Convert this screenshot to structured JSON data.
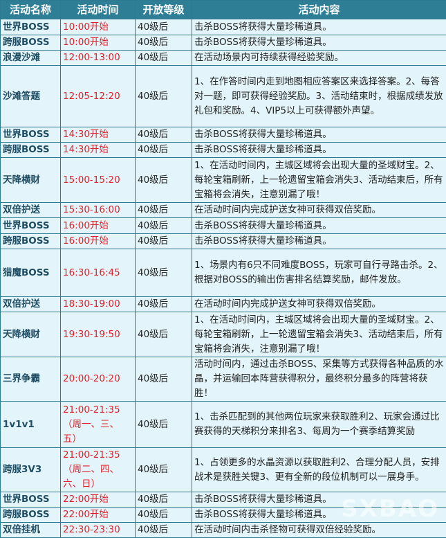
{
  "headers": [
    "活动名称",
    "活动时间",
    "开放等级",
    "活动内容"
  ],
  "rows": [
    {
      "name": "世界BOSS",
      "time": "10:00开始",
      "level": "40级后",
      "content": "击杀BOSS将获得大量珍稀道具。"
    },
    {
      "name": "跨服BOSS",
      "time": "10:00开始",
      "level": "40级后",
      "content": "击杀BOSS将获得大量珍稀道具。"
    },
    {
      "name": "浪漫沙滩",
      "time": "12:00-13:00",
      "level": "40级后",
      "content": "在活动场景内可持续获得经验奖励。"
    },
    {
      "name": "沙滩答题",
      "time": "12:05-12:20",
      "level": "40级后",
      "content": "1、在作答时间内走到地图相应答案区来选择答案。2、每答对一题，即可获得经验奖励。3、活动结束时，根据成绩发放礼包和奖励。4、VIP5以上可获得额外声望。"
    },
    {
      "name": "世界BOSS",
      "time": "14:30开始",
      "level": "40级后",
      "content": "击杀BOSS将获得大量珍稀道具。"
    },
    {
      "name": "跨服BOSS",
      "time": "14:30开始",
      "level": "40级后",
      "content": "击杀BOSS将获得大量珍稀道具。"
    },
    {
      "name": "天降横财",
      "time": "15:00-15:20",
      "level": "40级后",
      "content": "1、在活动时间内，主城区域将会出现大量的圣域财宝。2、每轮宝箱刷新，上一轮遗留宝箱会消失3、活动结束后，所有宝箱将会消失，注意别漏了哦！"
    },
    {
      "name": "双倍护送",
      "time": "15:30-16:00",
      "level": "40级后",
      "content": "在活动时间内完成护送女神可获得双倍奖励。"
    },
    {
      "name": "世界BOSS",
      "time": "16:00开始",
      "level": "40级后",
      "content": "击杀BOSS将获得大量珍稀道具。"
    },
    {
      "name": "跨服BOSS",
      "time": "16:00开始",
      "level": "40级后",
      "content": "击杀BOSS将获得大量珍稀道具。"
    },
    {
      "name": "猎魔BOSS",
      "time": "16:30-16:45",
      "level": "40级后",
      "content": "1、场景内有6只不同难度BOSS，玩家可自行寻路击杀。2、根据对BOSS的输出伤害排名结算奖励，邮件发放。"
    },
    {
      "name": "双倍护送",
      "time": "18:30-19:00",
      "level": "40级后",
      "content": "在活动时间内完成护送女神可获得双倍奖励。"
    },
    {
      "name": "天降横财",
      "time": "19:30-19:50",
      "level": "40级后",
      "content": "1、在活动时间内，主城区域将会出现大量的圣域财宝。2、每轮宝箱刷新，上一轮遗留宝箱会消失3、活动结束后，所有宝箱将会消失，注意别漏了哦！"
    },
    {
      "name": "三界争霸",
      "time": "20:00-20:20",
      "level": "40级后",
      "content": "活动时间内，通过击杀BOSS、采集等方式获得各种品质的水晶，并运输回本阵营获得积分，最终积分最多的阵营将获胜！"
    },
    {
      "name": "1v1v1",
      "time": "21:00-21:35（周一、三、五）",
      "level": "40级后",
      "content": "1、击杀匹配到的其他两位玩家来获取胜利2、玩家会通过比赛获得的天梯积分来排名3、每周为一个赛季结算奖励"
    },
    {
      "name": "跨服3V3",
      "time": "21:00-21:35（周二、四、六、日）",
      "level": "40级后",
      "content": "1、占领更多的水晶资源以获取胜利2、合理分配人员，安排战术是获胜关键3、更有全新的段位机制可以一展身手。"
    },
    {
      "name": "世界BOSS",
      "time": "22:00开始",
      "level": "40级后",
      "content": "击杀BOSS将获得大量珍稀道具。"
    },
    {
      "name": "跨服BOSS",
      "time": "22:00开始",
      "level": "40级后",
      "content": "击杀BOSS将获得大量珍稀道具。"
    },
    {
      "name": "双倍挂机",
      "time": "22:30-23:30",
      "level": "40级后",
      "content": "在活动时间内击杀怪物可获得双倍经验奖励。"
    }
  ],
  "watermark": "SXBAO",
  "colors": {
    "header_bg": "#2e7f96",
    "cell_bg": "#e3f5fa",
    "time_text": "#e0202a",
    "name_text": "#1f4d63",
    "border": "#2d7a90"
  }
}
